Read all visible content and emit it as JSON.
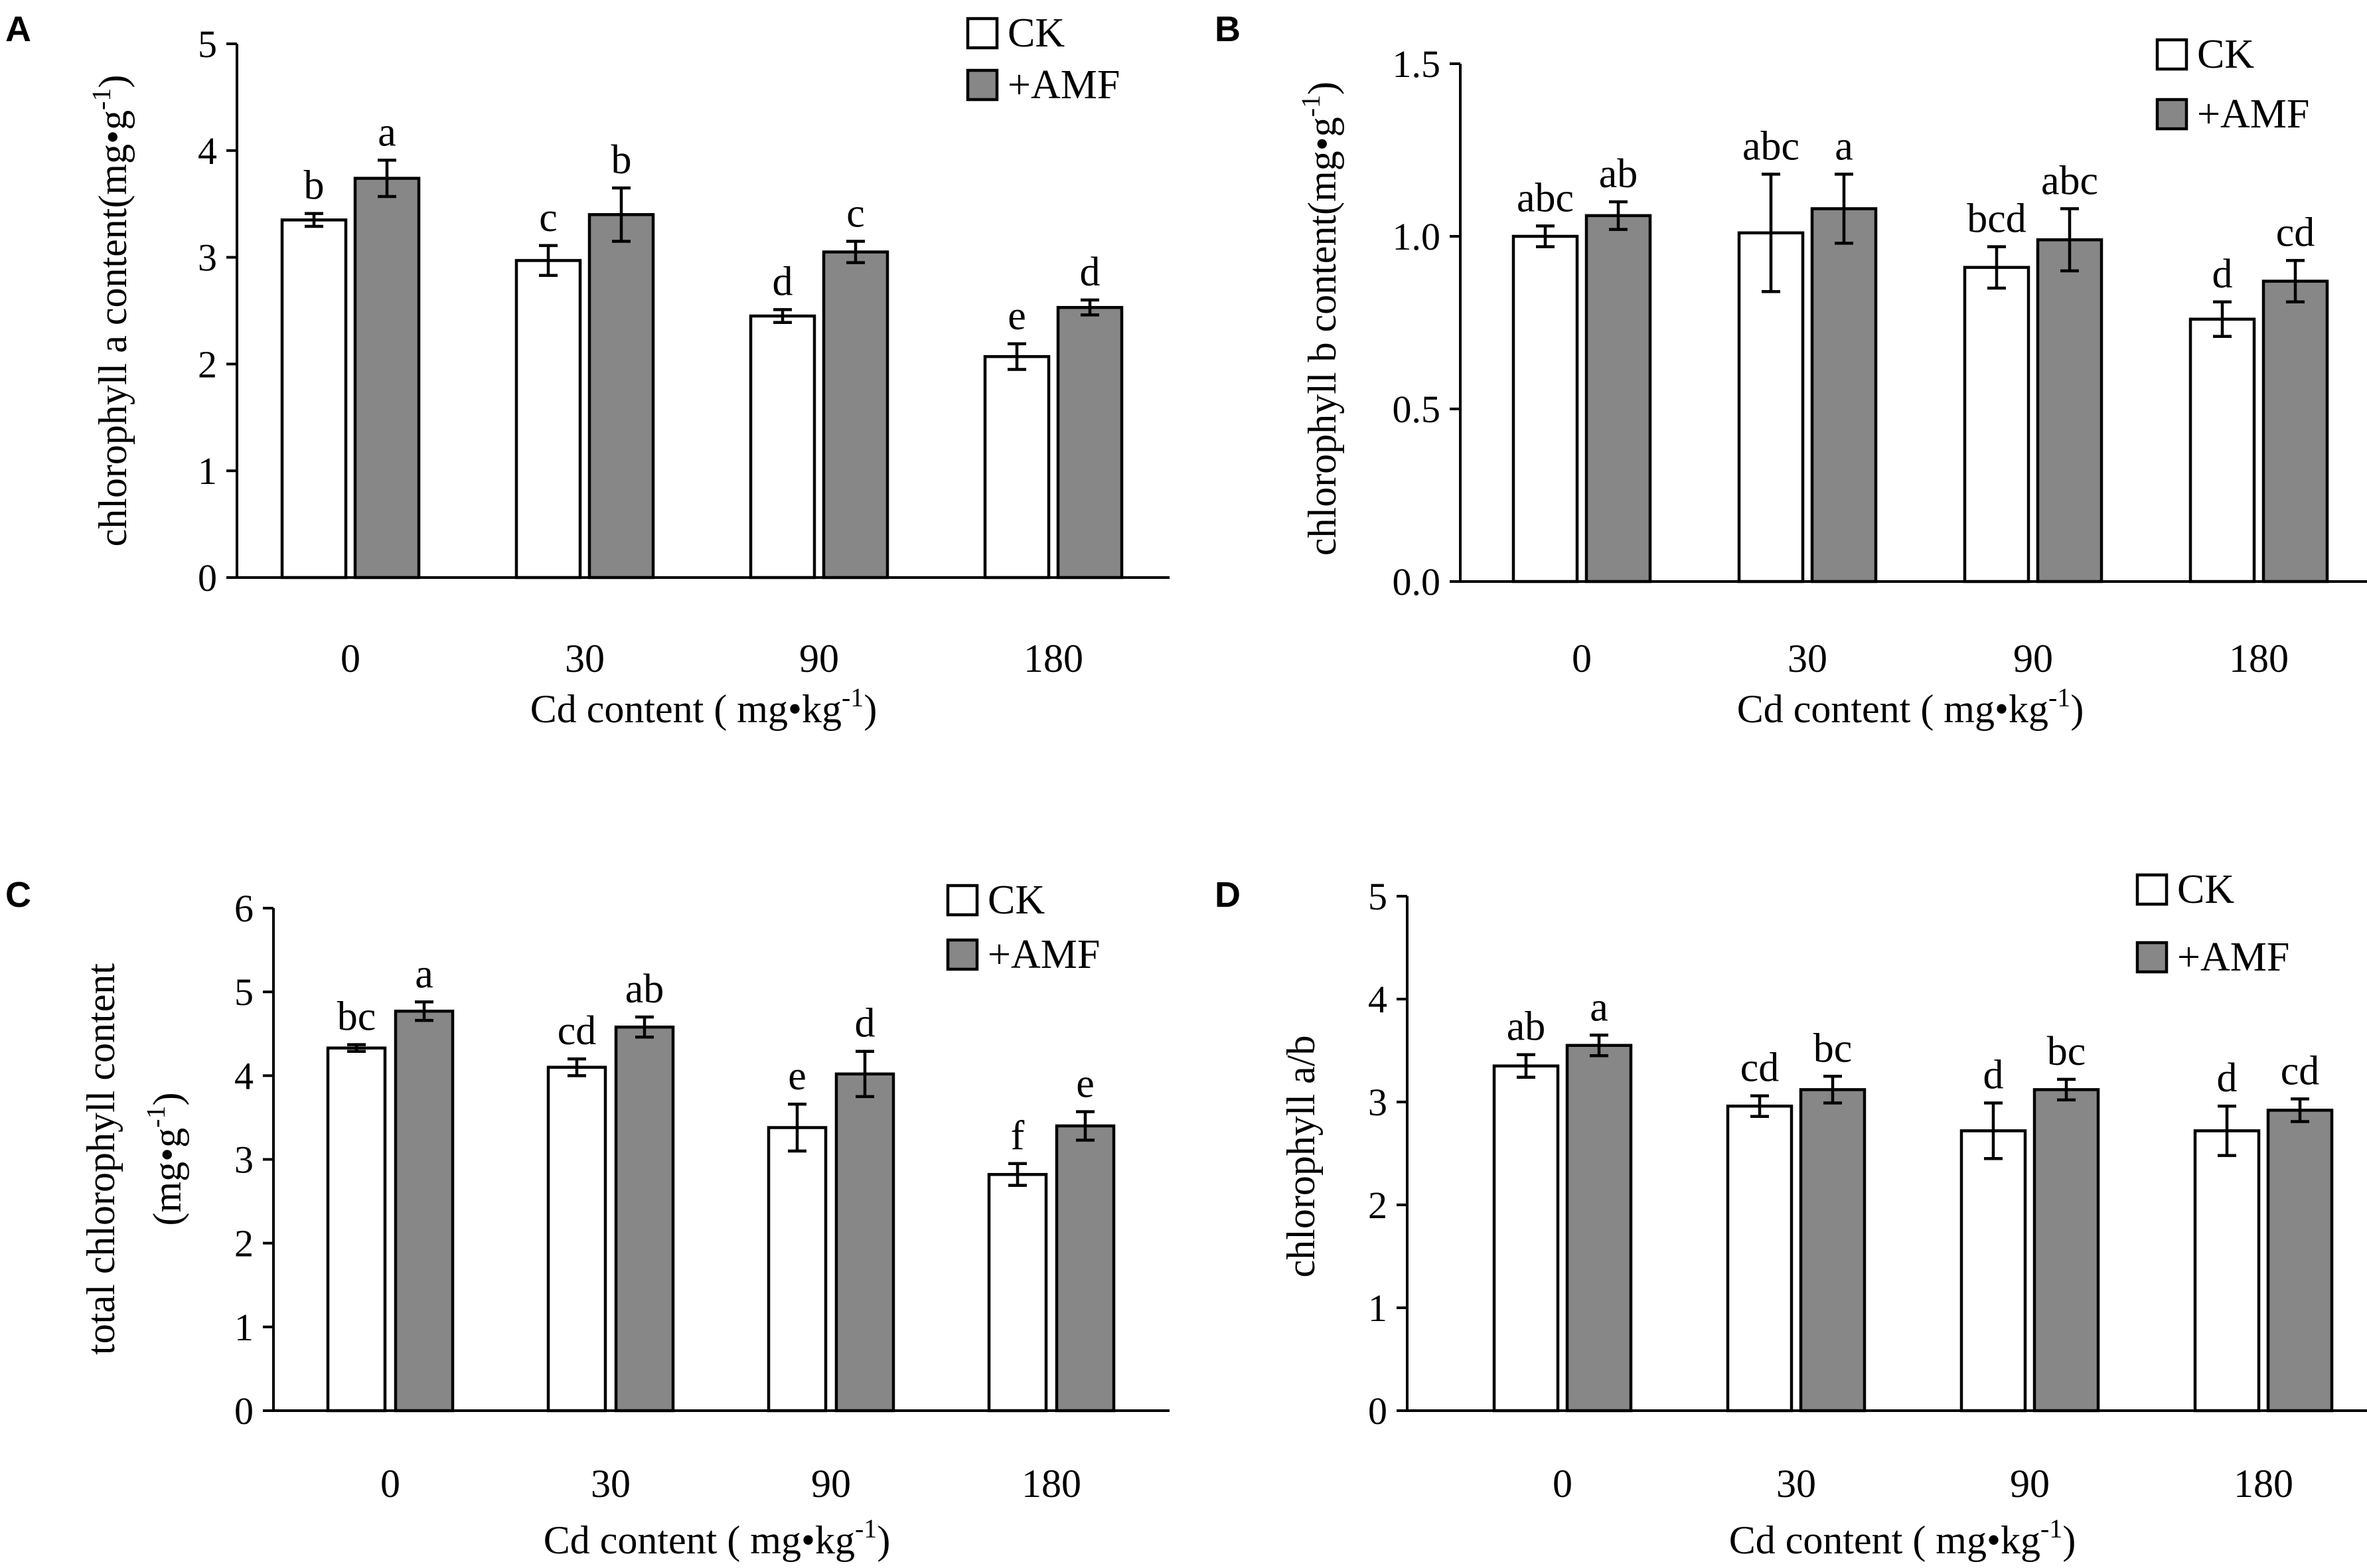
{
  "chart_data": [
    {
      "type": "bar",
      "panel": "A",
      "categories": [
        "0",
        "30",
        "90",
        "180"
      ],
      "ylim": [
        0,
        5
      ],
      "yticks": [
        "0",
        "1",
        "2",
        "3",
        "4",
        "5"
      ],
      "ylabel": "chlorophyll a content(mg•g",
      "ylabel_sup": "-1",
      "ylabel_suffix": ")",
      "xlabel": "Cd content ( mg•kg",
      "xlabel_sup": "-1",
      "xlabel_suffix": ")",
      "legend": [
        "CK",
        "+AMF"
      ],
      "series": [
        {
          "name": "CK",
          "color": "#ffffff",
          "values": [
            3.35,
            2.97,
            2.45,
            2.07
          ],
          "errors": [
            0.06,
            0.14,
            0.06,
            0.12
          ],
          "letters": [
            "b",
            "c",
            "d",
            "e"
          ]
        },
        {
          "name": "+AMF",
          "color": "#878787",
          "values": [
            3.74,
            3.4,
            3.05,
            2.53
          ],
          "errors": [
            0.17,
            0.25,
            0.1,
            0.07
          ],
          "letters": [
            "a",
            "b",
            "c",
            "d"
          ]
        }
      ]
    },
    {
      "type": "bar",
      "panel": "B",
      "categories": [
        "0",
        "30",
        "90",
        "180"
      ],
      "ylim": [
        0,
        1.5
      ],
      "yticks": [
        "0.0",
        "0.5",
        "1.0",
        "1.5"
      ],
      "ylabel": "chlorophyll b content(mg•g",
      "ylabel_sup": "-1",
      "ylabel_suffix": ")",
      "xlabel": "Cd content ( mg•kg",
      "xlabel_sup": "-1",
      "xlabel_suffix": ")",
      "legend": [
        "CK",
        "+AMF"
      ],
      "series": [
        {
          "name": "CK",
          "color": "#ffffff",
          "values": [
            1.0,
            1.01,
            0.91,
            0.76
          ],
          "errors": [
            0.03,
            0.17,
            0.06,
            0.05
          ],
          "letters": [
            "abc",
            "abc",
            "bcd",
            "d"
          ]
        },
        {
          "name": "+AMF",
          "color": "#878787",
          "values": [
            1.06,
            1.08,
            0.99,
            0.87
          ],
          "errors": [
            0.04,
            0.1,
            0.09,
            0.06
          ],
          "letters": [
            "ab",
            "a",
            "abc",
            "cd"
          ]
        }
      ]
    },
    {
      "type": "bar",
      "panel": "C",
      "categories": [
        "0",
        "30",
        "90",
        "180"
      ],
      "ylim": [
        0,
        6
      ],
      "yticks": [
        "0",
        "1",
        "2",
        "3",
        "4",
        "5",
        "6"
      ],
      "ylabel": "total chlorophyll content",
      "ylabel2": "(mg•g",
      "ylabel2_sup": "-1",
      "ylabel2_suffix": ")",
      "xlabel": "Cd content ( mg•kg",
      "xlabel_sup": "-1",
      "xlabel_suffix": ")",
      "legend": [
        "CK",
        "+AMF"
      ],
      "series": [
        {
          "name": "CK",
          "color": "#ffffff",
          "values": [
            4.33,
            4.1,
            3.38,
            2.82
          ],
          "errors": [
            0.04,
            0.1,
            0.28,
            0.13
          ],
          "letters": [
            "bc",
            "cd",
            "e",
            "f"
          ]
        },
        {
          "name": "+AMF",
          "color": "#878787",
          "values": [
            4.77,
            4.58,
            4.02,
            3.4
          ],
          "errors": [
            0.11,
            0.12,
            0.27,
            0.17
          ],
          "letters": [
            "a",
            "ab",
            "d",
            "e"
          ]
        }
      ]
    },
    {
      "type": "bar",
      "panel": "D",
      "categories": [
        "0",
        "30",
        "90",
        "180"
      ],
      "ylim": [
        0,
        5
      ],
      "yticks": [
        "0",
        "1",
        "2",
        "3",
        "4",
        "5"
      ],
      "ylabel": "chlorophyll a/b",
      "xlabel": "Cd content ( mg•kg",
      "xlabel_sup": "-1",
      "xlabel_suffix": ")",
      "legend": [
        "CK",
        "+AMF"
      ],
      "series": [
        {
          "name": "CK",
          "color": "#ffffff",
          "values": [
            3.35,
            2.96,
            2.72,
            2.72
          ],
          "errors": [
            0.11,
            0.1,
            0.27,
            0.24
          ],
          "letters": [
            "ab",
            "cd",
            "d",
            "d"
          ]
        },
        {
          "name": "+AMF",
          "color": "#878787",
          "values": [
            3.55,
            3.12,
            3.12,
            2.92
          ],
          "errors": [
            0.1,
            0.13,
            0.1,
            0.11
          ],
          "letters": [
            "a",
            "bc",
            "bc",
            "cd"
          ]
        }
      ]
    }
  ]
}
